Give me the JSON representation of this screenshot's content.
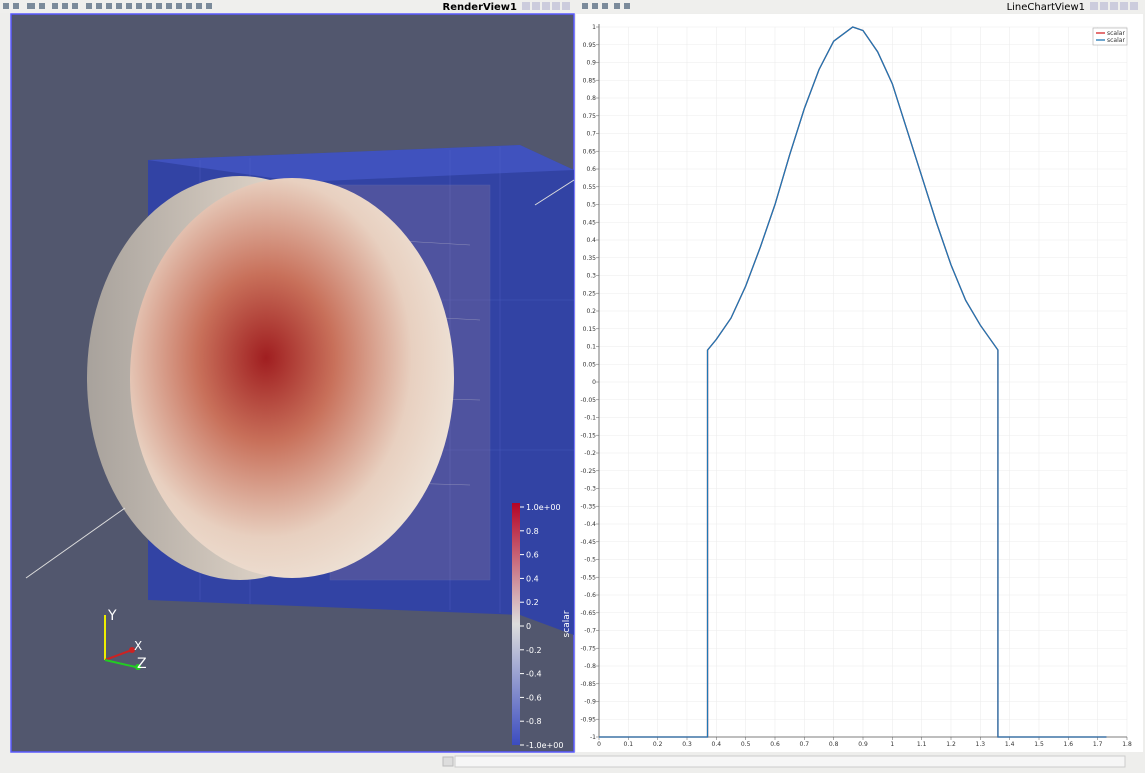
{
  "render_view": {
    "title": "RenderView1",
    "color_legend": {
      "title": "scalar",
      "labels": [
        "1.0e+00",
        "0.8",
        "0.6",
        "0.4",
        "0.2",
        "0",
        "-0.2",
        "-0.4",
        "-0.6",
        "-0.8",
        "-1.0e+00"
      ]
    },
    "axes": {
      "x": "X",
      "y": "Y",
      "z": "Z"
    }
  },
  "chart_view": {
    "title": "LineChartView1"
  },
  "chart_data": {
    "type": "line",
    "grid": true,
    "legend": "top-right",
    "xlim": [
      0,
      1.8
    ],
    "ylim": [
      -1,
      1
    ],
    "xticks": [
      0,
      0.1,
      0.2,
      0.3,
      0.4,
      0.5,
      0.6,
      0.7,
      0.8,
      0.9,
      1,
      1.1,
      1.2,
      1.3,
      1.4,
      1.5,
      1.6,
      1.7,
      1.8
    ],
    "yticks": [
      1,
      0.95,
      0.9,
      0.85,
      0.8,
      0.75,
      0.7,
      0.65,
      0.6,
      0.55,
      0.5,
      0.45,
      0.4,
      0.35,
      0.3,
      0.25,
      0.2,
      0.15,
      0.1,
      0.05,
      0,
      -0.05,
      -0.1,
      -0.15,
      -0.2,
      -0.25,
      -0.3,
      -0.35,
      -0.4,
      -0.45,
      -0.5,
      -0.55,
      -0.6,
      -0.65,
      -0.7,
      -0.75,
      -0.8,
      -0.85,
      -0.9,
      -0.95,
      -1
    ],
    "x": [
      0,
      0.37,
      0.37,
      0.4,
      0.45,
      0.5,
      0.55,
      0.6,
      0.65,
      0.7,
      0.75,
      0.8,
      0.865,
      0.9,
      0.95,
      1.0,
      1.05,
      1.1,
      1.15,
      1.2,
      1.25,
      1.3,
      1.36,
      1.36,
      1.73
    ],
    "series": [
      {
        "name": "scalar",
        "color": "#d62728",
        "values": [
          -1,
          -1,
          0.09,
          0.12,
          0.18,
          0.27,
          0.38,
          0.5,
          0.64,
          0.77,
          0.88,
          0.96,
          1,
          0.99,
          0.93,
          0.84,
          0.71,
          0.58,
          0.45,
          0.33,
          0.23,
          0.16,
          0.09,
          -1,
          -1
        ]
      },
      {
        "name": "scalar",
        "color": "#1f77b4",
        "values": [
          -1,
          -1,
          0.09,
          0.12,
          0.18,
          0.27,
          0.38,
          0.5,
          0.64,
          0.77,
          0.88,
          0.96,
          1,
          0.99,
          0.93,
          0.84,
          0.71,
          0.58,
          0.45,
          0.33,
          0.23,
          0.16,
          0.09,
          -1,
          -1
        ]
      }
    ]
  }
}
